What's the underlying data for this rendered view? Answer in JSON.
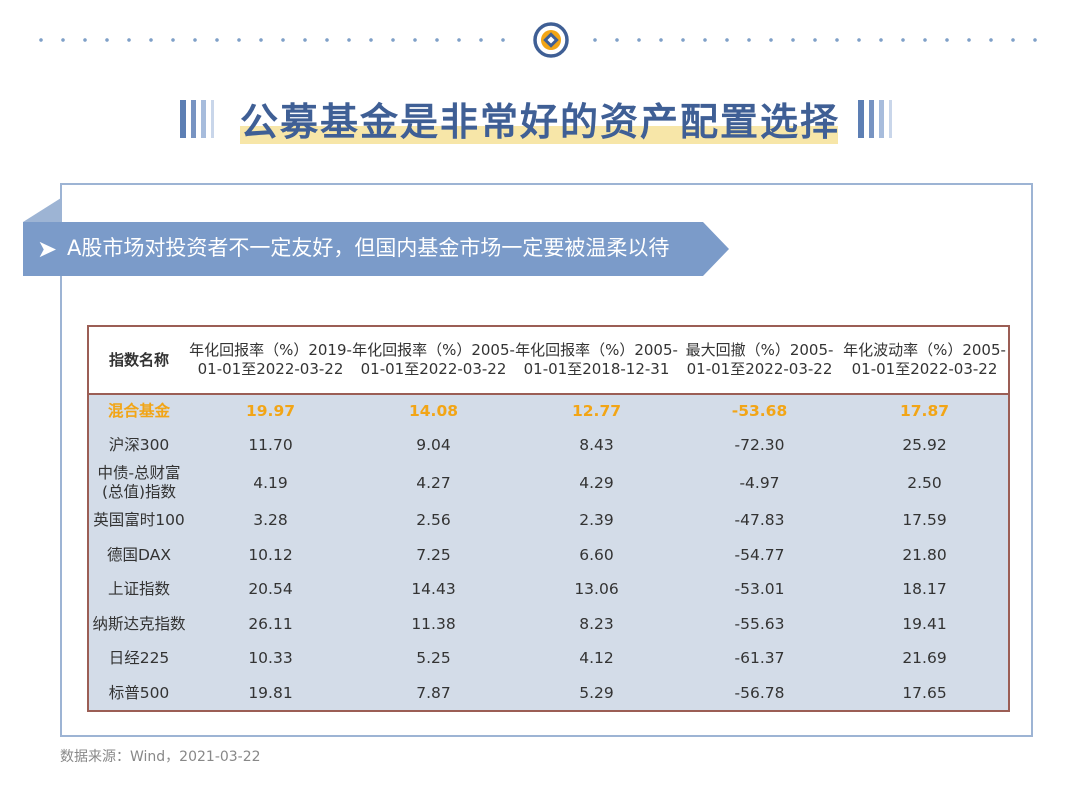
{
  "title": "公募基金是非常好的资产配置选择",
  "banner": "A股市场对投资者不一定友好，但国内基金市场一定要被温柔以待",
  "table": {
    "headers": [
      "指数名称",
      "年化回报率（%）2019-01-01至2022-03-22",
      "年化回报率（%）2005-01-01至2022-03-22",
      "年化回报率（%）2005-01-01至2018-12-31",
      "最大回撤（%）2005-01-01至2022-03-22",
      "年化波动率（%）2005-01-01至2022-03-22"
    ],
    "rows": [
      [
        "混合基金",
        "19.97",
        "14.08",
        "12.77",
        "-53.68",
        "17.87"
      ],
      [
        "沪深300",
        "11.70",
        "9.04",
        "8.43",
        "-72.30",
        "25.92"
      ],
      [
        "中债-总财富(总值)指数",
        "4.19",
        "4.27",
        "4.29",
        "-4.97",
        "2.50"
      ],
      [
        "英国富时100",
        "3.28",
        "2.56",
        "2.39",
        "-47.83",
        "17.59"
      ],
      [
        "德国DAX",
        "10.12",
        "7.25",
        "6.60",
        "-54.77",
        "21.80"
      ],
      [
        "上证指数",
        "20.54",
        "14.43",
        "13.06",
        "-53.01",
        "18.17"
      ],
      [
        "纳斯达克指数",
        "26.11",
        "11.38",
        "8.23",
        "-55.63",
        "19.41"
      ],
      [
        "日经225",
        "10.33",
        "5.25",
        "4.12",
        "-61.37",
        "21.69"
      ],
      [
        "标普500",
        "19.81",
        "7.87",
        "5.29",
        "-56.78",
        "17.65"
      ]
    ],
    "highlight_color": "#f2a516"
  },
  "source": "数据来源：Wind，2021-03-22",
  "colors": {
    "accent": "#3f5f95",
    "banner": "#7b9bc9",
    "table_border": "#9b5e55",
    "table_bg": "#d3dce8"
  },
  "icons": {
    "logo": "coin-logo-icon",
    "banner_arrow": "chevron-right-icon"
  }
}
